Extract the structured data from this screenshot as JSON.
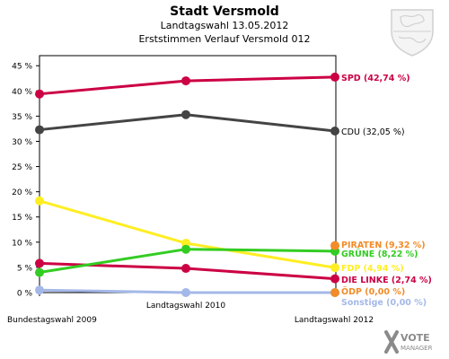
{
  "chart_data": {
    "type": "line",
    "title": "Stadt Versmold",
    "subtitle": "Landtagswahl 13.05.2012",
    "subtitle2": "Erststimmen Verlauf Versmold 012",
    "x": [
      "Bundestagswahl 2009",
      "Landtagswahl 2010",
      "Landtagswahl 2012"
    ],
    "ylim": [
      0,
      47
    ],
    "yticks": [
      "0 %",
      "5 %",
      "10 %",
      "15 %",
      "20 %",
      "25 %",
      "30 %",
      "35 %",
      "40 %",
      "45 %"
    ],
    "grid": false,
    "series": [
      {
        "name": "Sonstige",
        "label": "Sonstige (0,00 %)",
        "color": "#a4b8e8",
        "values": [
          0.5,
          0.0,
          0.0
        ]
      },
      {
        "name": "ÖDP",
        "label": "ÖDP (0,00 %)",
        "color": "#f28c28",
        "values": [
          null,
          null,
          0.0
        ]
      },
      {
        "name": "DIE LINKE",
        "label": "DIE LINKE (2,74 %)",
        "color": "#cc0044",
        "values": [
          5.8,
          4.8,
          2.74
        ]
      },
      {
        "name": "FDP",
        "label": "FDP (4,94 %)",
        "color": "#ffee22",
        "values": [
          18.2,
          9.8,
          4.94
        ]
      },
      {
        "name": "GRÜNE",
        "label": "GRÜNE (8,22 %)",
        "color": "#33cc22",
        "values": [
          4.0,
          8.6,
          8.22
        ]
      },
      {
        "name": "PIRATEN",
        "label": "PIRATEN (9,32 %)",
        "color": "#f28c28",
        "values": [
          null,
          null,
          9.32
        ]
      },
      {
        "name": "CDU",
        "label": "CDU (32,05 %)",
        "color": "#444444",
        "values": [
          32.3,
          35.3,
          32.05
        ]
      },
      {
        "name": "SPD",
        "label": "SPD (42,74 %)",
        "color": "#cc0044",
        "values": [
          39.4,
          42.0,
          42.74
        ]
      }
    ]
  },
  "logo": {
    "text_vote": "VOTE",
    "text_manager": "MANAGER"
  }
}
